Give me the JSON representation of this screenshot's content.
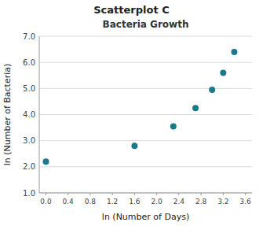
{
  "chart_data": {
    "type": "scatter",
    "title": "Scatterplot C",
    "subtitle": "Bacteria Growth",
    "x_label": "ln (Number of Days)",
    "y_label": "ln (Number of Bacteria)",
    "x": [
      0.0,
      1.6,
      2.3,
      2.7,
      3.0,
      3.2,
      3.4
    ],
    "y": [
      2.2,
      2.8,
      3.55,
      4.25,
      4.95,
      5.6,
      6.4
    ],
    "color": "#1a7a8a",
    "xlim": [
      -0.12,
      3.72
    ],
    "ylim": [
      1.0,
      7.0
    ],
    "xticks": [
      {
        "value": 0,
        "label": "0.0"
      },
      0.4,
      0.8,
      1.2,
      1.6,
      {
        "value": 2,
        "label": "2.0"
      },
      2.4,
      2.8,
      3.2,
      3.6
    ],
    "yticks": [
      {
        "value": 1,
        "label": "1.0"
      },
      {
        "value": 2,
        "label": "2.0"
      },
      {
        "value": 3,
        "label": "3.0"
      },
      {
        "value": 4,
        "label": "4.0"
      },
      {
        "value": 5,
        "label": "5.0"
      },
      {
        "value": 6,
        "label": "6.0"
      },
      {
        "value": 7,
        "label": "7.0"
      }
    ],
    "grid": "y"
  }
}
